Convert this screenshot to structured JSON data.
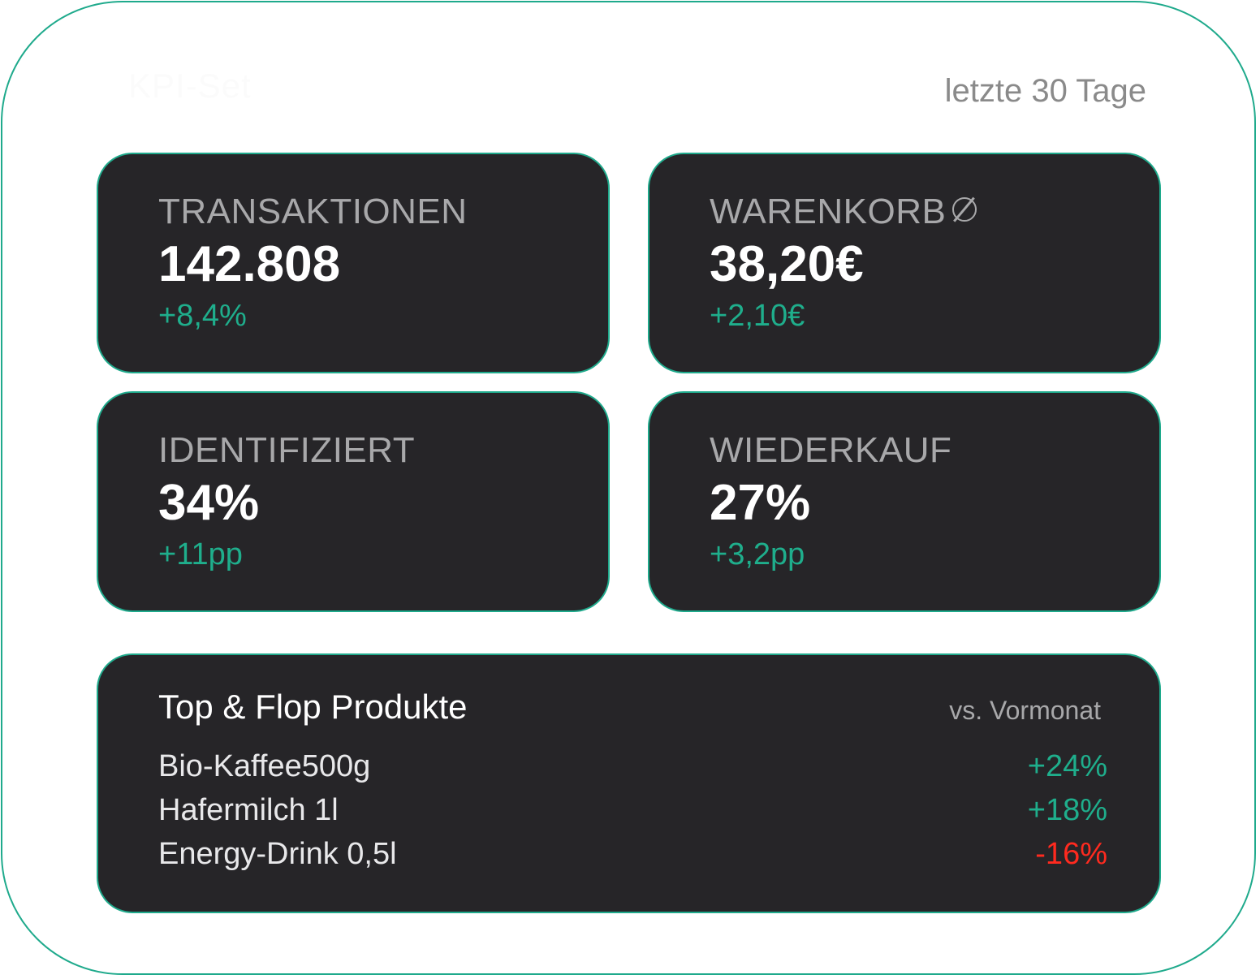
{
  "header": {
    "title": "KPI-Set",
    "period": "letzte 30 Tage"
  },
  "kpis": [
    {
      "label": "TRANSAKTIONEN",
      "value": "142.808",
      "delta": "+8,4%"
    },
    {
      "label": "WARENKORB",
      "value": "38,20€",
      "delta": "+2,10€",
      "icon": "average-symbol-icon"
    },
    {
      "label": "IDENTIFIZIERT",
      "value": "34%",
      "delta": "+11pp"
    },
    {
      "label": "WIEDERKAUF",
      "value": "27%",
      "delta": "+3,2pp"
    }
  ],
  "products": {
    "title": "Top & Flop Produkte",
    "subtitle": "vs. Vormonat",
    "rows": [
      {
        "name": "Bio-Kaffee500g",
        "delta": "+24%",
        "trend": "positive"
      },
      {
        "name": "Hafermilch 1l",
        "delta": "+18%",
        "trend": "positive"
      },
      {
        "name": "Energy-Drink 0,5l",
        "delta": "-16%",
        "trend": "negative"
      }
    ]
  },
  "colors": {
    "accent": "#1faa8c",
    "card_bg": "#262528",
    "positive": "#1fae8c",
    "negative": "#ff2a1f"
  }
}
